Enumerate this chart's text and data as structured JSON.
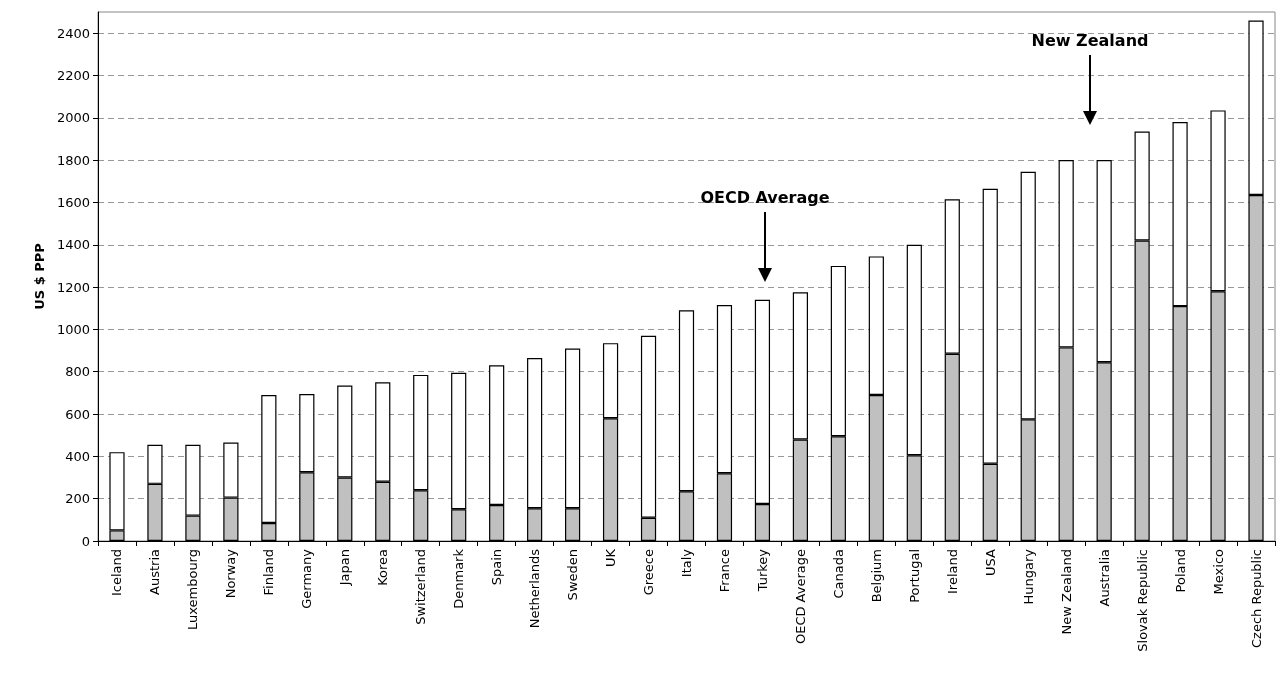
{
  "chart_data": {
    "type": "bar",
    "stacked": true,
    "ylabel": "US $ PPP",
    "categories": [
      "Iceland",
      "Austria",
      "Luxembourg",
      "Norway",
      "Finland",
      "Germany",
      "Japan",
      "Korea",
      "Switzerland",
      "Denmark",
      "Spain",
      "Netherlands",
      "Sweden",
      "UK",
      "Greece",
      "Italy",
      "France",
      "Turkey",
      "OECD Average",
      "Canada",
      "Belgium",
      "Portugal",
      "Ireland",
      "USA",
      "Hungary",
      "New Zealand",
      "Australia",
      "Slovak Republic",
      "Poland",
      "Mexico",
      "Czech Republic"
    ],
    "series": [
      {
        "color": "#c0c0c0",
        "values": [
          50,
          270,
          120,
          205,
          85,
          325,
          300,
          280,
          240,
          150,
          170,
          155,
          155,
          580,
          110,
          235,
          320,
          175,
          480,
          495,
          690,
          405,
          885,
          365,
          575,
          915,
          845,
          1420,
          1110,
          1180,
          1635
        ]
      },
      {
        "color": "#ffffff",
        "values": [
          370,
          185,
          335,
          260,
          605,
          370,
          435,
          470,
          545,
          645,
          660,
          710,
          755,
          355,
          860,
          855,
          795,
          965,
          695,
          805,
          655,
          995,
          730,
          1300,
          1170,
          885,
          955,
          515,
          870,
          855,
          825
        ]
      }
    ],
    "ylim": [
      0,
      2500
    ],
    "yticks": [
      0,
      200,
      400,
      600,
      800,
      1000,
      1200,
      1400,
      1600,
      1800,
      2000,
      2200,
      2400
    ],
    "grid": "y",
    "annotations": [
      "OECD Average",
      "New Zealand"
    ]
  }
}
